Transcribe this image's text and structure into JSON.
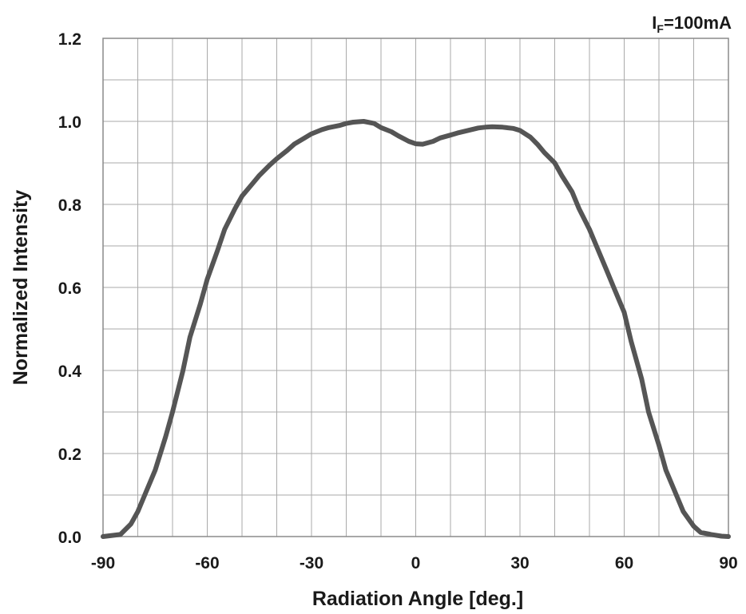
{
  "chart_data": {
    "type": "line",
    "condition_label": {
      "main": "I",
      "sub": "F",
      "rest": "=100mA"
    },
    "xlabel": "Radiation Angle [deg.]",
    "ylabel": "Normalized Intensity",
    "xlim": [
      -90,
      90
    ],
    "ylim": [
      0,
      1.2
    ],
    "x_ticks": [
      "-90",
      "-60",
      "-30",
      "0",
      "30",
      "60",
      "90"
    ],
    "x_tick_values": [
      -90,
      -60,
      -30,
      0,
      30,
      60,
      90
    ],
    "y_ticks": [
      "0.0",
      "0.2",
      "0.4",
      "0.6",
      "0.8",
      "1.0",
      "1.2"
    ],
    "y_tick_values": [
      0,
      0.2,
      0.4,
      0.6,
      0.8,
      1.0,
      1.2
    ],
    "x_minor_step": 10,
    "y_minor_step": 0.1,
    "grid": true,
    "line_color": "#555555",
    "grid_color": "#aaaaaa",
    "series": [
      {
        "x": [
          -90,
          -85,
          -82,
          -80,
          -78,
          -75,
          -72,
          -70,
          -67,
          -65,
          -62,
          -60,
          -57,
          -55,
          -52,
          -50,
          -47,
          -45,
          -42,
          -40,
          -37,
          -35,
          -32,
          -30,
          -27,
          -25,
          -22,
          -20,
          -18,
          -15,
          -12,
          -10,
          -7,
          -5,
          -2,
          0,
          2,
          5,
          7,
          10,
          12,
          15,
          18,
          20,
          22,
          25,
          28,
          30,
          33,
          35,
          37,
          40,
          42,
          45,
          47,
          50,
          52,
          55,
          57,
          60,
          62,
          65,
          67,
          70,
          72,
          75,
          77,
          80,
          82,
          85,
          88,
          90
        ],
        "y": [
          0.0,
          0.005,
          0.03,
          0.06,
          0.1,
          0.16,
          0.24,
          0.3,
          0.4,
          0.48,
          0.56,
          0.62,
          0.69,
          0.74,
          0.79,
          0.82,
          0.85,
          0.87,
          0.895,
          0.91,
          0.93,
          0.945,
          0.96,
          0.97,
          0.98,
          0.985,
          0.99,
          0.995,
          0.998,
          1.0,
          0.995,
          0.985,
          0.975,
          0.965,
          0.952,
          0.946,
          0.945,
          0.952,
          0.96,
          0.967,
          0.972,
          0.978,
          0.984,
          0.986,
          0.987,
          0.986,
          0.983,
          0.978,
          0.962,
          0.945,
          0.925,
          0.9,
          0.87,
          0.83,
          0.79,
          0.74,
          0.7,
          0.64,
          0.6,
          0.54,
          0.47,
          0.38,
          0.3,
          0.22,
          0.16,
          0.1,
          0.06,
          0.025,
          0.01,
          0.005,
          0.001,
          0.0
        ]
      }
    ]
  }
}
